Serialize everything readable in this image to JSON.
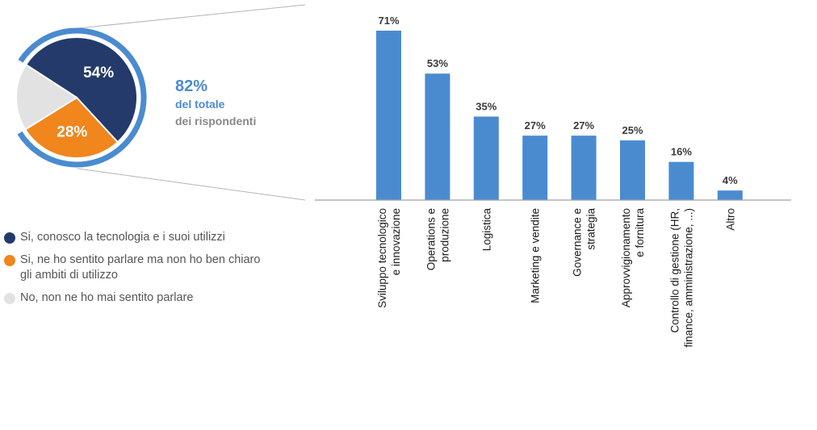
{
  "colors": {
    "dark_blue": "#243a6b",
    "orange": "#f0861c",
    "light_gray": "#e2e2e2",
    "blue": "#4a8bd0",
    "text": "#3a3a3a",
    "legend_text": "#555555",
    "callout_gray": "#888888"
  },
  "chart_data": [
    {
      "type": "pie",
      "slices": [
        {
          "label": "Si, conosco la tecnologia e i suoi utilizzi",
          "value": 54,
          "display": "54%",
          "color": "#243a6b"
        },
        {
          "label": "Si, ne ho sentito parlare ma non ho ben chiaro gli ambiti di utilizzo",
          "value": 28,
          "display": "28%",
          "color": "#f0861c"
        },
        {
          "label": "No, non ne ho mai sentito parlare",
          "value": 18,
          "display": "",
          "color": "#e2e2e2"
        }
      ],
      "highlight_arc": {
        "value": 82,
        "color": "#4a8bd0"
      }
    },
    {
      "type": "bar",
      "categories": [
        [
          "Sviluppo tecnologico",
          "e innovazione"
        ],
        [
          "Operations e",
          "produzione"
        ],
        [
          "Logistica"
        ],
        [
          "Marketing e vendite"
        ],
        [
          "Governance e",
          "strategia"
        ],
        [
          "Approvvigionamento",
          "e fornitura"
        ],
        [
          "Controllo di gestione (HR,",
          "finance, amministrazione, ...)"
        ],
        [
          "Altro"
        ]
      ],
      "values": [
        71,
        53,
        35,
        27,
        27,
        25,
        16,
        4
      ],
      "value_labels": [
        "71%",
        "53%",
        "35%",
        "27%",
        "27%",
        "25%",
        "16%",
        "4%"
      ],
      "color": "#4a8bd0",
      "ylim": [
        0,
        71
      ]
    }
  ],
  "callout": {
    "percent": "82%",
    "line1": "del totale",
    "line2": "dei rispondenti"
  },
  "legend": [
    {
      "lines": [
        "Si, conosco la tecnologia e i suoi utilizzi"
      ],
      "color": "#243a6b"
    },
    {
      "lines": [
        "Si, ne ho sentito parlare ma non ho ben chiaro",
        "gli ambiti di utilizzo"
      ],
      "color": "#f0861c"
    },
    {
      "lines": [
        "No, non ne ho mai sentito parlare"
      ],
      "color": "#e2e2e2"
    }
  ]
}
